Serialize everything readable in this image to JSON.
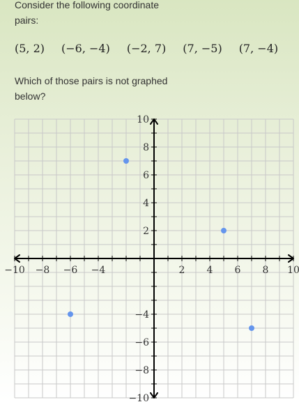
{
  "question": {
    "intro": "Consider the following coordinate pairs:",
    "pairs": [
      "(5, 2)",
      "(−6, −4)",
      "(−2, 7)",
      "(7, −5)",
      "(7, −4)"
    ],
    "prompt": "Which of those pairs is not graphed below?"
  },
  "graph": {
    "x_range": [
      -10,
      10
    ],
    "y_range": [
      -10,
      10
    ],
    "grid_step": 1,
    "label_step": 2,
    "x_tick_labels": [
      "−10",
      "−8",
      "−6",
      "−4",
      "2",
      "4",
      "6",
      "8",
      "10"
    ],
    "x_tick_values": [
      -10,
      -8,
      -6,
      -4,
      2,
      4,
      6,
      8,
      10
    ],
    "y_tick_labels": [
      "10",
      "8",
      "6",
      "4",
      "2",
      "−4",
      "−6",
      "−8",
      "−10"
    ],
    "y_tick_values": [
      10,
      8,
      6,
      4,
      2,
      -4,
      -6,
      -8,
      -10
    ],
    "points": [
      {
        "x": -2,
        "y": 7
      },
      {
        "x": 5,
        "y": 2
      },
      {
        "x": -6,
        "y": -4
      },
      {
        "x": 7,
        "y": -5
      }
    ],
    "colors": {
      "point": "#6495ed",
      "grid": "#c8c8c8",
      "axis": "#000000"
    }
  }
}
